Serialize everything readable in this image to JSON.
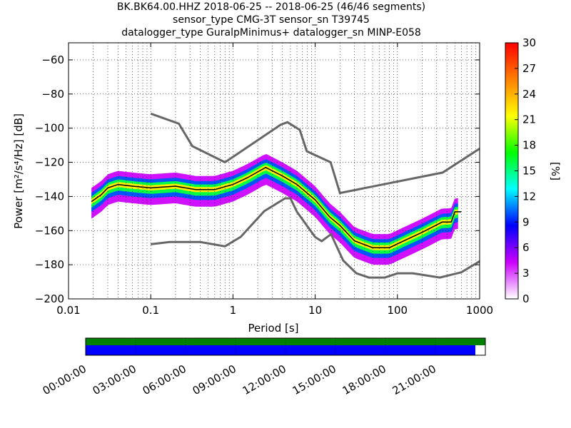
{
  "title": {
    "line1": "BK.BK64.00.HHZ   2018-06-25 -- 2018-06-25  (46/46 segments)",
    "line2": "sensor_type CMG-3T sensor_sn T39745",
    "line3": "datalogger_type GuralpMinimus+ datalogger_sn MINP-E058"
  },
  "chart_data": {
    "type": "heatmap",
    "xlabel": "Period [s]",
    "ylabel": "Power [m²/s⁴/Hz] [dB]",
    "xscale": "log",
    "xlim": [
      0.01,
      1000
    ],
    "ylim": [
      -200,
      -50
    ],
    "xticks": [
      0.01,
      0.1,
      1,
      10,
      100,
      1000
    ],
    "xtick_labels": [
      "0.01",
      "0.1",
      "1",
      "10",
      "100",
      "1000"
    ],
    "yticks": [
      -200,
      -180,
      -160,
      -140,
      -120,
      -100,
      -80,
      -60
    ],
    "ytick_labels": [
      "−200",
      "−180",
      "−160",
      "−140",
      "−120",
      "−100",
      "−80",
      "−60"
    ],
    "grid": true,
    "colorbar": {
      "label": "[%]",
      "range": [
        0,
        30
      ],
      "ticks": [
        0,
        3,
        6,
        9,
        12,
        15,
        18,
        21,
        24,
        27,
        30
      ],
      "tick_labels": [
        "0",
        "3",
        "6",
        "9",
        "12",
        "15",
        "18",
        "21",
        "24",
        "27",
        "30"
      ],
      "colormap": [
        "#ffffff",
        "#cc00ff",
        "#0000ff",
        "#00ffff",
        "#00ff00",
        "#ffff00",
        "#ff7f00",
        "#ff0000"
      ]
    },
    "noise_models": [
      {
        "name": "high",
        "color": "#666666",
        "points": [
          [
            0.1,
            -91.5
          ],
          [
            0.22,
            -97.4
          ],
          [
            0.32,
            -110.5
          ],
          [
            0.8,
            -120
          ],
          [
            3.8,
            -98.0
          ],
          [
            4.6,
            -96.5
          ],
          [
            6.5,
            -101.0
          ],
          [
            7.9,
            -113.5
          ],
          [
            15.4,
            -120.0
          ],
          [
            20.0,
            -138.0
          ],
          [
            354.8,
            -126.0
          ],
          [
            1000,
            -112.0
          ]
        ]
      },
      {
        "name": "low",
        "color": "#666666",
        "points": [
          [
            0.1,
            -168.0
          ],
          [
            0.17,
            -166.7
          ],
          [
            0.4,
            -166.7
          ],
          [
            0.8,
            -169.2
          ],
          [
            1.24,
            -163.7
          ],
          [
            2.4,
            -148.6
          ],
          [
            4.3,
            -141.1
          ],
          [
            5.0,
            -141.1
          ],
          [
            6.0,
            -149.0
          ],
          [
            10.0,
            -163.8
          ],
          [
            12.0,
            -166.2
          ],
          [
            15.6,
            -162.1
          ],
          [
            21.9,
            -177.5
          ],
          [
            31.6,
            -185.0
          ],
          [
            45.0,
            -187.5
          ],
          [
            70.0,
            -187.5
          ],
          [
            101.0,
            -185.0
          ],
          [
            154.0,
            -185.0
          ],
          [
            328.0,
            -187.5
          ],
          [
            600.0,
            -184.4
          ],
          [
            1000,
            -178.0
          ]
        ]
      }
    ],
    "median": {
      "color": "#000000",
      "points": [
        [
          0.019,
          -143
        ],
        [
          0.025,
          -139
        ],
        [
          0.03,
          -135
        ],
        [
          0.04,
          -133
        ],
        [
          0.06,
          -134
        ],
        [
          0.1,
          -135
        ],
        [
          0.2,
          -134
        ],
        [
          0.35,
          -136
        ],
        [
          0.6,
          -136
        ],
        [
          1.0,
          -133
        ],
        [
          1.5,
          -129
        ],
        [
          2.5,
          -123
        ],
        [
          4.0,
          -128
        ],
        [
          6.0,
          -133
        ],
        [
          10.0,
          -142
        ],
        [
          15.0,
          -152
        ],
        [
          20.0,
          -157
        ],
        [
          30.0,
          -166
        ],
        [
          50.0,
          -170
        ],
        [
          80.0,
          -170
        ],
        [
          120.0,
          -166
        ],
        [
          200.0,
          -161
        ],
        [
          350.0,
          -155
        ],
        [
          450.0,
          -155
        ],
        [
          500.0,
          -149
        ],
        [
          600.0,
          -149
        ]
      ]
    },
    "ppsd_bands": [
      {
        "percent": 4,
        "offset": [
          -10,
          8
        ]
      },
      {
        "percent": 10,
        "offset": [
          -6,
          5
        ]
      },
      {
        "percent": 16,
        "offset": [
          -3.5,
          3
        ]
      },
      {
        "percent": 22,
        "offset": [
          -1.5,
          1.5
        ]
      }
    ]
  },
  "time_axis": {
    "labels": [
      "00:00:00",
      "03:00:00",
      "06:00:00",
      "09:00:00",
      "12:00:00",
      "15:00:00",
      "18:00:00",
      "21:00:00"
    ],
    "coverage_color": "#008000",
    "data_color": "#0000ff",
    "coverage_fraction": 1.0,
    "data_fraction": 0.975
  }
}
